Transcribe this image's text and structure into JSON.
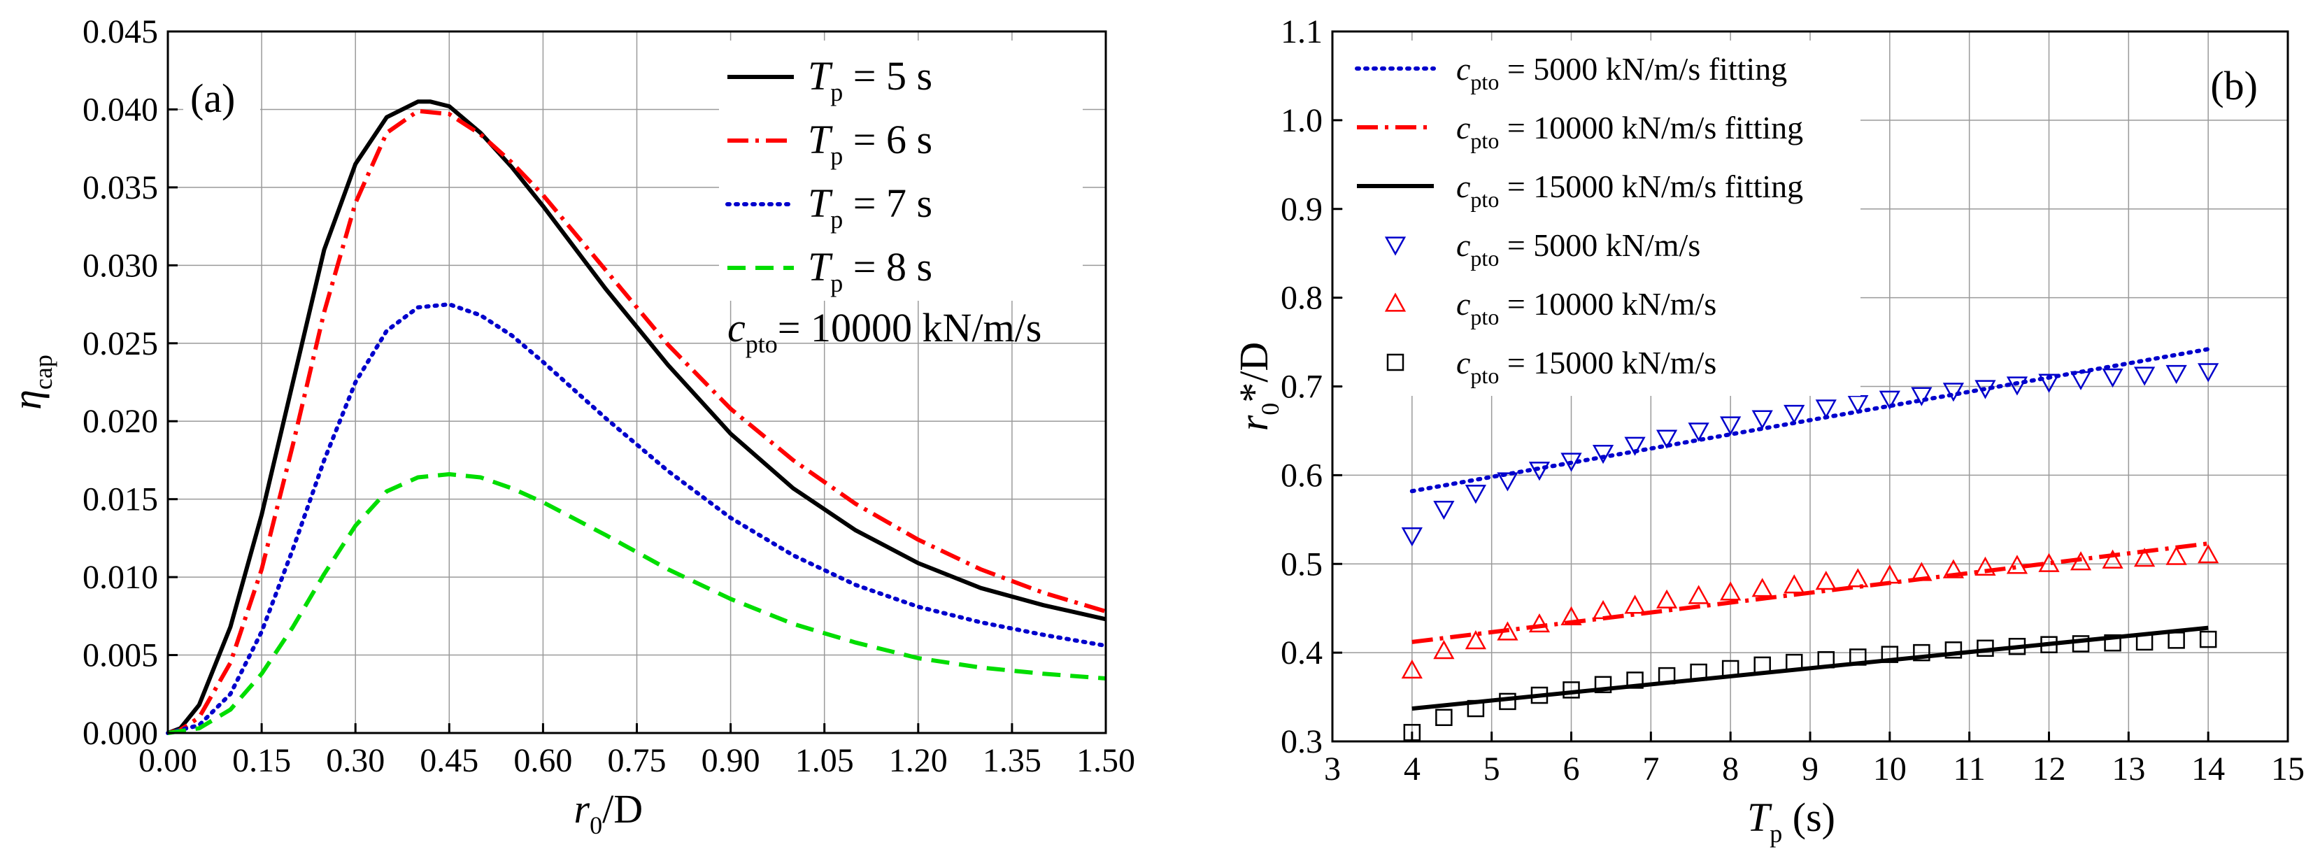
{
  "chart_data": [
    {
      "panel": "a",
      "type": "line",
      "panel_label": "(a)",
      "xlabel": {
        "var": "r",
        "sub": "0",
        "rest": "/D"
      },
      "ylabel": {
        "var": "η",
        "sub": "cap"
      },
      "xlim": [
        0,
        1.5
      ],
      "ylim": [
        0,
        0.045
      ],
      "x_ticks": [
        "0.00",
        "0.15",
        "0.30",
        "0.45",
        "0.60",
        "0.75",
        "0.90",
        "1.05",
        "1.20",
        "1.35",
        "1.50"
      ],
      "y_ticks": [
        "0.000",
        "0.005",
        "0.010",
        "0.015",
        "0.020",
        "0.025",
        "0.030",
        "0.035",
        "0.040",
        "0.045"
      ],
      "annotation": {
        "var": "c",
        "sub": "pto",
        "rest": "= 10000 kN/m/s"
      },
      "legend_position": "top-right",
      "series": [
        {
          "name": "T_p = 5 s",
          "legend_var": "T",
          "legend_sub": "p",
          "legend_rest": " = 5 s",
          "color": "#000000",
          "dash": "solid",
          "x": [
            0,
            0.02,
            0.05,
            0.1,
            0.15,
            0.2,
            0.25,
            0.3,
            0.35,
            0.4,
            0.42,
            0.45,
            0.5,
            0.55,
            0.6,
            0.7,
            0.8,
            0.9,
            1.0,
            1.1,
            1.2,
            1.3,
            1.4,
            1.5
          ],
          "y": [
            0,
            0.0003,
            0.0018,
            0.0068,
            0.014,
            0.0225,
            0.031,
            0.0365,
            0.0395,
            0.0405,
            0.0405,
            0.0402,
            0.0385,
            0.0363,
            0.0338,
            0.0285,
            0.0236,
            0.0192,
            0.0157,
            0.013,
            0.0109,
            0.0093,
            0.0082,
            0.0073
          ]
        },
        {
          "name": "T_p = 6 s",
          "legend_var": "T",
          "legend_sub": "p",
          "legend_rest": " = 6 s",
          "color": "#ff0000",
          "dash": "dashdot",
          "x": [
            0,
            0.02,
            0.05,
            0.1,
            0.15,
            0.2,
            0.25,
            0.3,
            0.35,
            0.4,
            0.45,
            0.5,
            0.55,
            0.6,
            0.7,
            0.8,
            0.9,
            1.0,
            1.1,
            1.2,
            1.3,
            1.4,
            1.5
          ],
          "y": [
            0,
            0.0002,
            0.001,
            0.0045,
            0.0105,
            0.0185,
            0.027,
            0.034,
            0.0385,
            0.0399,
            0.0397,
            0.0384,
            0.0366,
            0.0345,
            0.0297,
            0.0249,
            0.0208,
            0.0175,
            0.0147,
            0.0124,
            0.0105,
            0.009,
            0.0078
          ]
        },
        {
          "name": "T_p = 7 s",
          "legend_var": "T",
          "legend_sub": "p",
          "legend_rest": " = 7 s",
          "color": "#0000cc",
          "dash": "dot",
          "x": [
            0,
            0.05,
            0.1,
            0.15,
            0.2,
            0.25,
            0.3,
            0.35,
            0.4,
            0.45,
            0.5,
            0.55,
            0.6,
            0.7,
            0.8,
            0.9,
            1.0,
            1.1,
            1.2,
            1.3,
            1.4,
            1.5
          ],
          "y": [
            0,
            0.0005,
            0.0025,
            0.0065,
            0.0118,
            0.0175,
            0.0225,
            0.0258,
            0.0273,
            0.0275,
            0.0268,
            0.0255,
            0.0238,
            0.0202,
            0.0168,
            0.0138,
            0.0114,
            0.0095,
            0.0081,
            0.0071,
            0.0063,
            0.0056
          ]
        },
        {
          "name": "T_p = 8 s",
          "legend_var": "T",
          "legend_sub": "p",
          "legend_rest": " = 8 s",
          "color": "#00dd00",
          "dash": "dash",
          "x": [
            0,
            0.05,
            0.1,
            0.15,
            0.2,
            0.25,
            0.3,
            0.35,
            0.4,
            0.45,
            0.5,
            0.55,
            0.6,
            0.7,
            0.8,
            0.9,
            1.0,
            1.1,
            1.2,
            1.3,
            1.4,
            1.5
          ],
          "y": [
            0,
            0.0003,
            0.0015,
            0.0038,
            0.0068,
            0.0102,
            0.0133,
            0.0155,
            0.0164,
            0.0166,
            0.0164,
            0.0157,
            0.0148,
            0.0127,
            0.0105,
            0.0086,
            0.007,
            0.0058,
            0.0048,
            0.0042,
            0.0038,
            0.0035
          ]
        }
      ]
    },
    {
      "panel": "b",
      "type": "scatter",
      "panel_label": "(b)",
      "xlabel": {
        "var": "T",
        "sub": "p",
        "rest": " (s)"
      },
      "ylabel": {
        "var": "r",
        "sub": "0",
        "rest": "*/D"
      },
      "xlim": [
        3,
        15
      ],
      "ylim": [
        0.3,
        1.1
      ],
      "x_ticks": [
        "3",
        "4",
        "5",
        "6",
        "7",
        "8",
        "9",
        "10",
        "11",
        "12",
        "13",
        "14",
        "15"
      ],
      "y_ticks": [
        "0.3",
        "0.4",
        "0.5",
        "0.6",
        "0.7",
        "0.8",
        "0.9",
        "1.0",
        "1.1"
      ],
      "legend_position": "top-left",
      "fits": [
        {
          "name": "c_pto = 5000 kN/m/s fitting",
          "legend_var": "c",
          "legend_sub": "pto",
          "legend_rest": " = 5000 kN/m/s fitting",
          "color": "#0000cc",
          "dash": "dot",
          "x": [
            4,
            14
          ],
          "y": [
            0.582,
            0.742
          ]
        },
        {
          "name": "c_pto = 10000 kN/m/s fitting",
          "legend_var": "c",
          "legend_sub": "pto",
          "legend_rest": " = 10000 kN/m/s fitting",
          "color": "#ff0000",
          "dash": "dashdot",
          "x": [
            4,
            14
          ],
          "y": [
            0.412,
            0.523
          ]
        },
        {
          "name": "c_pto = 15000 kN/m/s fitting",
          "legend_var": "c",
          "legend_sub": "pto",
          "legend_rest": " = 15000 kN/m/s fitting",
          "color": "#000000",
          "dash": "solid",
          "x": [
            4,
            14
          ],
          "y": [
            0.337,
            0.428
          ]
        }
      ],
      "scatter": [
        {
          "name": "c_pto = 5000 kN/m/s",
          "legend_var": "c",
          "legend_sub": "pto",
          "legend_rest": " = 5000 kN/m/s",
          "marker": "triangle-down",
          "color": "#0000cc",
          "x": [
            4,
            4.4,
            4.8,
            5.2,
            5.6,
            6,
            6.4,
            6.8,
            7.2,
            7.6,
            8,
            8.4,
            8.8,
            9.2,
            9.6,
            10,
            10.4,
            10.8,
            11.2,
            11.6,
            12,
            12.4,
            12.8,
            13.2,
            13.6,
            14
          ],
          "y": [
            0.532,
            0.562,
            0.58,
            0.594,
            0.606,
            0.616,
            0.625,
            0.634,
            0.642,
            0.65,
            0.657,
            0.664,
            0.67,
            0.676,
            0.681,
            0.686,
            0.69,
            0.695,
            0.698,
            0.702,
            0.705,
            0.708,
            0.711,
            0.713,
            0.715,
            0.717
          ]
        },
        {
          "name": "c_pto = 10000 kN/m/s",
          "legend_var": "c",
          "legend_sub": "pto",
          "legend_rest": " = 10000 kN/m/s",
          "marker": "triangle-up",
          "color": "#ff0000",
          "x": [
            4,
            4.4,
            4.8,
            5.2,
            5.6,
            6,
            6.4,
            6.8,
            7.2,
            7.6,
            8,
            8.4,
            8.8,
            9.2,
            9.6,
            10,
            10.4,
            10.8,
            11.2,
            11.6,
            12,
            12.4,
            12.8,
            13.2,
            13.6,
            14
          ],
          "y": [
            0.38,
            0.402,
            0.413,
            0.423,
            0.432,
            0.44,
            0.447,
            0.453,
            0.459,
            0.464,
            0.468,
            0.472,
            0.476,
            0.48,
            0.483,
            0.487,
            0.49,
            0.493,
            0.496,
            0.498,
            0.5,
            0.502,
            0.504,
            0.506,
            0.508,
            0.51
          ]
        },
        {
          "name": "c_pto = 15000 kN/m/s",
          "legend_var": "c",
          "legend_sub": "pto",
          "legend_rest": " = 15000 kN/m/s",
          "marker": "square",
          "color": "#000000",
          "x": [
            4,
            4.4,
            4.8,
            5.2,
            5.6,
            6,
            6.4,
            6.8,
            7.2,
            7.6,
            8,
            8.4,
            8.8,
            9.2,
            9.6,
            10,
            10.4,
            10.8,
            11.2,
            11.6,
            12,
            12.4,
            12.8,
            13.2,
            13.6,
            14
          ],
          "y": [
            0.31,
            0.327,
            0.337,
            0.345,
            0.352,
            0.358,
            0.364,
            0.369,
            0.374,
            0.378,
            0.382,
            0.386,
            0.389,
            0.392,
            0.395,
            0.398,
            0.4,
            0.403,
            0.405,
            0.407,
            0.409,
            0.41,
            0.411,
            0.412,
            0.414,
            0.415
          ]
        }
      ]
    }
  ]
}
